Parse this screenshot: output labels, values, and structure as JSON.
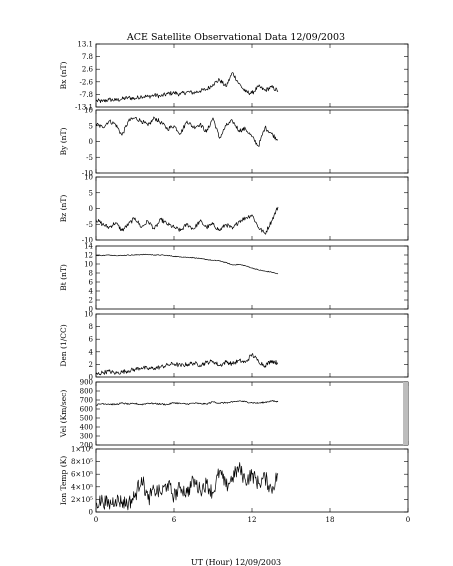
{
  "title": "ACE Satellite Observational Data   12/09/2003",
  "xlabel": "UT (Hour)   12/09/2003",
  "chart_data": {
    "type": "line",
    "title": "ACE Satellite Observational Data   12/09/2003",
    "xlabel": "UT (Hour)   12/09/2003",
    "x_ticks": [
      "0",
      "6",
      "12",
      "18",
      "0"
    ],
    "xlim": [
      0,
      24
    ],
    "panels": [
      {
        "ylabel": "Bx (nT)",
        "ylim": [
          -13.1,
          13.1
        ],
        "yticks": [
          "13.1",
          "7.8",
          "2.6",
          "-2.6",
          "-7.8",
          "-13.1"
        ],
        "x": [
          0,
          0.5,
          1,
          1.5,
          2,
          2.5,
          3,
          3.5,
          4,
          4.5,
          5,
          5.5,
          6,
          6.5,
          7,
          7.5,
          8,
          8.5,
          9,
          9.5,
          10,
          10.5,
          11,
          11.5,
          12,
          12.5,
          13,
          13.5,
          14
        ],
        "values": [
          -10.5,
          -10.8,
          -10,
          -10.3,
          -9.8,
          -9.2,
          -9.6,
          -8.6,
          -8.8,
          -8.2,
          -8.6,
          -7.6,
          -7.2,
          -7.8,
          -6.8,
          -7.2,
          -6.4,
          -5.8,
          -3.6,
          -1.8,
          -4.6,
          1.2,
          -3.4,
          -6.8,
          -7.4,
          -4.6,
          -6.2,
          -4.8,
          -6.4
        ]
      },
      {
        "ylabel": "By (nT)",
        "ylim": [
          -10,
          10
        ],
        "yticks": [
          "10",
          "5",
          "0",
          "-5",
          "-10"
        ],
        "x": [
          0,
          0.5,
          1,
          1.5,
          2,
          2.5,
          3,
          3.5,
          4,
          4.5,
          5,
          5.5,
          6,
          6.5,
          7,
          7.5,
          8,
          8.5,
          9,
          9.5,
          10,
          10.5,
          11,
          11.5,
          12,
          12.5,
          13,
          13.5,
          14
        ],
        "values": [
          5.5,
          4.5,
          6.5,
          5.5,
          2,
          6.5,
          7.5,
          6.5,
          5,
          7.5,
          6,
          4,
          5,
          2.5,
          6.5,
          4.5,
          5.5,
          3,
          7.5,
          1,
          5,
          6.5,
          3.5,
          4,
          1.5,
          -1.5,
          4.5,
          2.5,
          0.5
        ]
      },
      {
        "ylabel": "Bz (nT)",
        "ylim": [
          -10,
          10
        ],
        "yticks": [
          "10",
          "5",
          "0",
          "-5",
          "-10"
        ],
        "x": [
          0,
          0.5,
          1,
          1.5,
          2,
          2.5,
          3,
          3.5,
          4,
          4.5,
          5,
          5.5,
          6,
          6.5,
          7,
          7.5,
          8,
          8.5,
          9,
          9.5,
          10,
          10.5,
          11,
          11.5,
          12,
          12.5,
          13,
          13.5,
          14
        ],
        "values": [
          -3.5,
          -5,
          -6,
          -4.5,
          -7,
          -5,
          -3,
          -6,
          -4,
          -6.5,
          -3.5,
          -5,
          -6,
          -7,
          -5,
          -6.5,
          -4,
          -6,
          -5,
          -7,
          -5,
          -6.5,
          -4,
          -3,
          -2,
          -6,
          -8,
          -4,
          0.5
        ]
      },
      {
        "ylabel": "Bt (nT)",
        "ylim": [
          0,
          14
        ],
        "yticks": [
          "14",
          "12",
          "10",
          "8",
          "6",
          "4",
          "2",
          "0"
        ],
        "x": [
          0,
          0.5,
          1,
          1.5,
          2,
          2.5,
          3,
          3.5,
          4,
          4.5,
          5,
          5.5,
          6,
          6.5,
          7,
          7.5,
          8,
          8.5,
          9,
          9.5,
          10,
          10.5,
          11,
          11.5,
          12,
          12.5,
          13,
          13.5,
          14
        ],
        "values": [
          11.9,
          11.9,
          12,
          11.9,
          11.9,
          12,
          12,
          12.1,
          12.1,
          12,
          12,
          11.9,
          11.7,
          11.6,
          11.5,
          11.4,
          11.2,
          11,
          10.8,
          10.7,
          10.3,
          9.8,
          9.9,
          9.6,
          9.1,
          8.7,
          8.4,
          8.2,
          7.8
        ]
      },
      {
        "ylabel": "Den (1/CC)",
        "ylim": [
          0,
          10
        ],
        "yticks": [
          "10",
          "8",
          "6",
          "4",
          "2",
          "0"
        ],
        "x": [
          0,
          0.5,
          1,
          1.5,
          2,
          2.5,
          3,
          3.5,
          4,
          4.5,
          5,
          5.5,
          6,
          6.5,
          7,
          7.5,
          8,
          8.5,
          9,
          9.5,
          10,
          10.5,
          11,
          11.5,
          12,
          12.5,
          13,
          13.5,
          14
        ],
        "values": [
          0.4,
          0.7,
          0.9,
          0.6,
          0.8,
          1,
          1.2,
          1.5,
          1.3,
          1.4,
          1.6,
          1.9,
          2.1,
          1.8,
          2,
          2.2,
          1.9,
          2.3,
          2.5,
          1.8,
          2.4,
          2.1,
          2.6,
          2.3,
          3.6,
          2.5,
          1.8,
          2.6,
          2.2
        ]
      },
      {
        "ylabel": "Vel (Km/sec)",
        "ylim": [
          200,
          900
        ],
        "yticks": [
          "900",
          "800",
          "700",
          "600",
          "500",
          "400",
          "300",
          "200"
        ],
        "x": [
          0,
          0.5,
          1,
          1.5,
          2,
          2.5,
          3,
          3.5,
          4,
          4.5,
          5,
          5.5,
          6,
          6.5,
          7,
          7.5,
          8,
          8.5,
          9,
          9.5,
          10,
          10.5,
          11,
          11.5,
          12,
          12.5,
          13,
          13.5,
          14
        ],
        "values": [
          645,
          660,
          655,
          650,
          665,
          655,
          660,
          650,
          665,
          660,
          655,
          650,
          670,
          660,
          655,
          665,
          660,
          655,
          680,
          665,
          670,
          675,
          690,
          680,
          670,
          665,
          675,
          690,
          680
        ]
      },
      {
        "ylabel": "Ion Temp (K)",
        "ylim": [
          0,
          1000000
        ],
        "yticks": [
          "1×10⁶",
          "8×10⁵",
          "6×10⁵",
          "4×10⁵",
          "2×10⁵",
          "0"
        ],
        "x": [
          0,
          0.5,
          1,
          1.5,
          2,
          2.5,
          3,
          3.5,
          4,
          4.5,
          5,
          5.5,
          6,
          6.5,
          7,
          7.5,
          8,
          8.5,
          9,
          9.5,
          10,
          10.5,
          11,
          11.5,
          12,
          12.5,
          13,
          13.5,
          14
        ],
        "values": [
          150000,
          180000,
          120000,
          200000,
          160000,
          140000,
          250000,
          550000,
          200000,
          350000,
          300000,
          450000,
          250000,
          400000,
          300000,
          500000,
          350000,
          450000,
          300000,
          650000,
          400000,
          550000,
          700000,
          500000,
          600000,
          450000,
          550000,
          350000,
          600000
        ]
      }
    ]
  }
}
